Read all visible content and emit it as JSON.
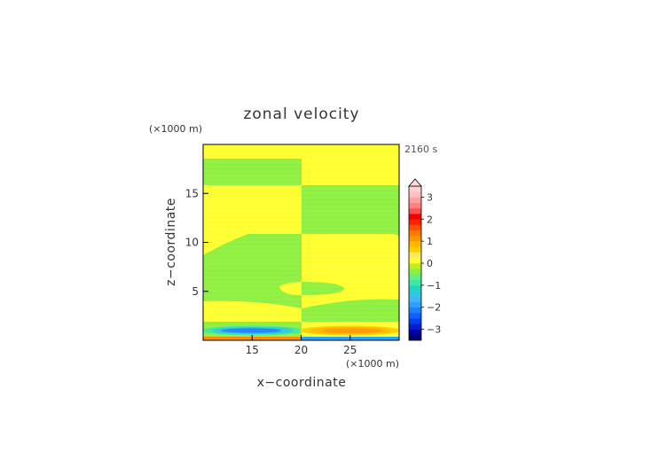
{
  "chart_data": {
    "type": "heatmap",
    "title": "zonal velocity",
    "xlabel": "x−coordinate",
    "ylabel": "z−coordinate",
    "x_unit_label": "(×1000 m)",
    "y_unit_label": "(×1000 m)",
    "time_label": "2160 s",
    "xlim": [
      10,
      30
    ],
    "ylim": [
      0,
      20
    ],
    "x_ticks": [
      "15",
      "20",
      "25"
    ],
    "y_ticks": [
      "5",
      "10",
      "15"
    ],
    "colorbar": {
      "tick_labels": [
        "−3",
        "−2",
        "−1",
        "0",
        "1",
        "2",
        "3"
      ],
      "levels": [
        -3.5,
        -3.25,
        -3.0,
        -2.75,
        -2.5,
        -2.25,
        -2.0,
        -1.75,
        -1.5,
        -1.25,
        -1.0,
        -0.75,
        -0.5,
        -0.25,
        0,
        0.25,
        0.5,
        0.75,
        1.0,
        1.25,
        1.5,
        1.75,
        2.0,
        2.25,
        2.5,
        2.75,
        3.0,
        3.25,
        3.5
      ],
      "colors": [
        "#000070",
        "#0000a8",
        "#0020d0",
        "#0040f0",
        "#1060ff",
        "#2080ff",
        "#30a0ff",
        "#40b8f8",
        "#30c8e0",
        "#20d8c0",
        "#40e8a0",
        "#60f080",
        "#90f040",
        "#b8f020",
        "#ffff30",
        "#ffe860",
        "#ffd000",
        "#ffb800",
        "#ff9800",
        "#ff7800",
        "#ff5000",
        "#ff2000",
        "#f00000",
        "#ff5050",
        "#ff8080",
        "#ffa0a0",
        "#ffc0c0",
        "#ffd0d0"
      ],
      "extends": "max"
    },
    "fields": [
      {
        "region": "z 18.8-20.0",
        "value": 0.1
      },
      {
        "region": "z 16.0-18.8, x<20",
        "value": -0.1
      },
      {
        "region": "z 16.0-18.8, x>20",
        "value": 0.1
      },
      {
        "region": "z 11.0-16.0, x<20",
        "value": 0.1
      },
      {
        "region": "z 11.0-16.0, x>20",
        "value": -0.1
      },
      {
        "region": "z 2.0-11.0, x<20",
        "value": -0.1
      },
      {
        "region": "z 2.0-11.0, x>20",
        "value": 0.1
      },
      {
        "region": "z 0.3-2.0, x<20",
        "value": 0.1
      },
      {
        "region": "z 0.3-2.0, x>20",
        "value": -0.1
      },
      {
        "region": "near-surface jet x<20",
        "value": -1.3
      },
      {
        "region": "near-surface jet x>20",
        "value": 1.3
      }
    ]
  }
}
